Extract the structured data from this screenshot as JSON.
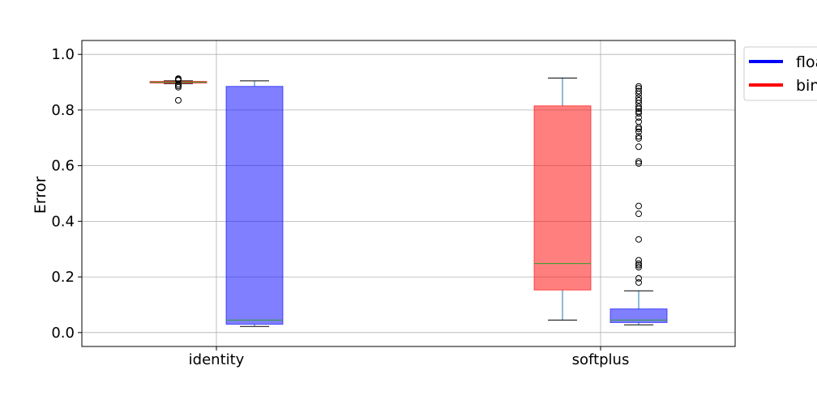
{
  "chart_data": {
    "type": "box",
    "title": "",
    "xlabel": "",
    "ylabel": "Error",
    "ylim": [
      -0.05,
      1.05
    ],
    "yticks": [
      "0.0",
      "0.2",
      "0.4",
      "0.6",
      "0.8",
      "1.0"
    ],
    "grid": true,
    "legend_placement": "outside-top-right",
    "categories": [
      "identity",
      "softplus"
    ],
    "series": [
      {
        "name": "float",
        "color": "#0000ff"
      },
      {
        "name": "binary",
        "color": "#ff0000"
      }
    ],
    "boxes": [
      {
        "category": "identity",
        "series": "binary",
        "fill": "#ff0000",
        "whisker_low": 0.895,
        "q1": 0.897,
        "median": 0.9,
        "q3": 0.903,
        "whisker_high": 0.905,
        "outliers": [
          0.835,
          0.882,
          0.887,
          0.893,
          0.907,
          0.91,
          0.913
        ]
      },
      {
        "category": "identity",
        "series": "float",
        "fill": "#0000ff",
        "whisker_low": 0.022,
        "q1": 0.03,
        "median": 0.045,
        "q3": 0.885,
        "whisker_high": 0.905,
        "outliers": []
      },
      {
        "category": "softplus",
        "series": "binary",
        "fill": "#ff0000",
        "whisker_low": 0.045,
        "q1": 0.153,
        "median": 0.248,
        "q3": 0.815,
        "whisker_high": 0.915,
        "outliers": []
      },
      {
        "category": "softplus",
        "series": "float",
        "fill": "#0000ff",
        "whisker_low": 0.028,
        "q1": 0.036,
        "median": 0.045,
        "q3": 0.085,
        "whisker_high": 0.15,
        "outliers": [
          0.18,
          0.195,
          0.235,
          0.242,
          0.248,
          0.26,
          0.335,
          0.427,
          0.455,
          0.608,
          0.615,
          0.668,
          0.698,
          0.705,
          0.722,
          0.732,
          0.738,
          0.758,
          0.773,
          0.788,
          0.795,
          0.805,
          0.812,
          0.825,
          0.835,
          0.845,
          0.858,
          0.868,
          0.878,
          0.885
        ]
      }
    ]
  }
}
